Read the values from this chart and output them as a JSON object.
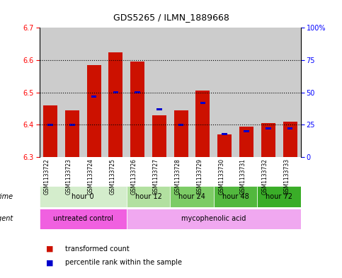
{
  "title": "GDS5265 / ILMN_1889668",
  "samples": [
    "GSM1133722",
    "GSM1133723",
    "GSM1133724",
    "GSM1133725",
    "GSM1133726",
    "GSM1133727",
    "GSM1133728",
    "GSM1133729",
    "GSM1133730",
    "GSM1133731",
    "GSM1133732",
    "GSM1133733"
  ],
  "transformed_count": [
    6.46,
    6.445,
    6.585,
    6.625,
    6.595,
    6.43,
    6.445,
    6.505,
    6.37,
    6.395,
    6.405,
    6.41
  ],
  "percentile_rank": [
    25,
    25,
    47,
    50,
    50,
    37,
    25,
    42,
    18,
    20,
    22,
    22
  ],
  "ylim": [
    6.3,
    6.7
  ],
  "yticks": [
    6.3,
    6.4,
    6.5,
    6.6,
    6.7
  ],
  "right_yticks": [
    0,
    25,
    50,
    75,
    100
  ],
  "right_ytick_labels": [
    "0",
    "25",
    "50",
    "75",
    "100%"
  ],
  "time_groups": [
    {
      "label": "hour 0",
      "start": 0,
      "end": 4,
      "color": "#d4edcc"
    },
    {
      "label": "hour 12",
      "start": 4,
      "end": 6,
      "color": "#b2e0a0"
    },
    {
      "label": "hour 24",
      "start": 6,
      "end": 8,
      "color": "#7dcc66"
    },
    {
      "label": "hour 48",
      "start": 8,
      "end": 10,
      "color": "#52b83e"
    },
    {
      "label": "hour 72",
      "start": 10,
      "end": 12,
      "color": "#3aad28"
    }
  ],
  "agent_groups": [
    {
      "label": "untreated control",
      "start": 0,
      "end": 4,
      "color": "#f060e0"
    },
    {
      "label": "mycophenolic acid",
      "start": 4,
      "end": 12,
      "color": "#f0a8f0"
    }
  ],
  "bar_color": "#cc1100",
  "blue_color": "#0000cc",
  "base_value": 6.3,
  "bar_width": 0.65,
  "sample_bg_color": "#cccccc",
  "plot_bg_color": "#ffffff",
  "grid_color": "#000000",
  "title_fontsize": 9,
  "tick_fontsize": 7,
  "label_fontsize": 7,
  "legend_fontsize": 7
}
